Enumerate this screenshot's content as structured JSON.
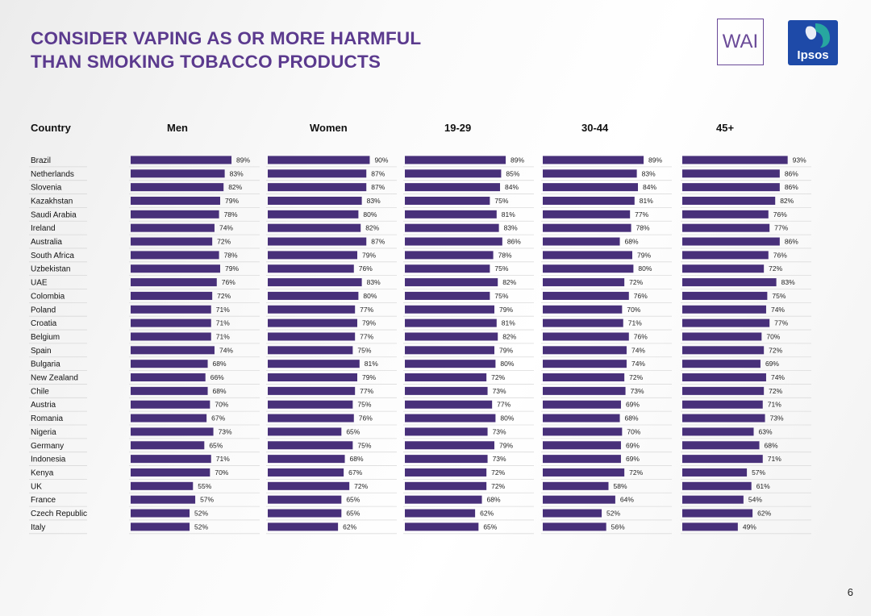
{
  "header": {
    "title_line1": "CONSIDER VAPING AS OR MORE HARMFUL",
    "title_line2": "THAN SMOKING TOBACCO PRODUCTS",
    "logo_wai": "WAI",
    "logo_ipsos": "Ipsos"
  },
  "page_number": "6",
  "colors": {
    "title": "#5b3a8e",
    "bar": "#48307a",
    "logo_blue": "#1e4aa8",
    "logo_teal": "#27a6a0"
  },
  "chart_data": {
    "type": "bar",
    "orientation": "horizontal",
    "layout": "small-multiples",
    "title": "CONSIDER VAPING AS OR MORE HARMFUL THAN SMOKING TOBACCO PRODUCTS",
    "row_header": "Country",
    "unit": "%",
    "xlim": [
      0,
      100
    ],
    "categories": [
      "Brazil",
      "Netherlands",
      "Slovenia",
      "Kazakhstan",
      "Saudi Arabia",
      "Ireland",
      "Australia",
      "South Africa",
      "Uzbekistan",
      "UAE",
      "Colombia",
      "Poland",
      "Croatia",
      "Belgium",
      "Spain",
      "Bulgaria",
      "New Zealand",
      "Chile",
      "Austria",
      "Romania",
      "Nigeria",
      "Germany",
      "Indonesia",
      "Kenya",
      "UK",
      "France",
      "Czech Republic",
      "Italy"
    ],
    "series": [
      {
        "name": "Men",
        "values": [
          89,
          83,
          82,
          79,
          78,
          74,
          72,
          78,
          79,
          76,
          72,
          71,
          71,
          71,
          74,
          68,
          66,
          68,
          70,
          67,
          73,
          65,
          71,
          70,
          55,
          57,
          52,
          52
        ]
      },
      {
        "name": "Women",
        "values": [
          90,
          87,
          87,
          83,
          80,
          82,
          87,
          79,
          76,
          83,
          80,
          77,
          79,
          77,
          75,
          81,
          79,
          77,
          75,
          76,
          65,
          75,
          68,
          67,
          72,
          65,
          65,
          62
        ]
      },
      {
        "name": "19-29",
        "values": [
          89,
          85,
          84,
          75,
          81,
          83,
          86,
          78,
          75,
          82,
          75,
          79,
          81,
          82,
          79,
          80,
          72,
          73,
          77,
          80,
          73,
          79,
          73,
          72,
          72,
          68,
          62,
          65
        ]
      },
      {
        "name": "30-44",
        "values": [
          89,
          83,
          84,
          81,
          77,
          78,
          68,
          79,
          80,
          72,
          76,
          70,
          71,
          76,
          74,
          74,
          72,
          73,
          69,
          68,
          70,
          69,
          69,
          72,
          58,
          64,
          52,
          56
        ]
      },
      {
        "name": "45+",
        "values": [
          93,
          86,
          86,
          82,
          76,
          77,
          86,
          76,
          72,
          83,
          75,
          74,
          77,
          70,
          72,
          69,
          74,
          72,
          71,
          73,
          63,
          68,
          71,
          57,
          61,
          54,
          62,
          49
        ]
      }
    ]
  }
}
